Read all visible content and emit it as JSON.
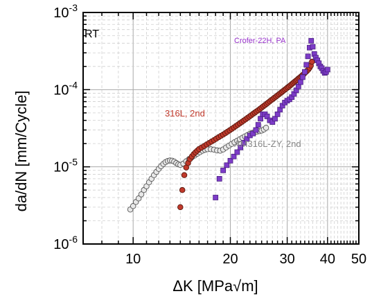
{
  "chart_data": {
    "type": "scatter",
    "title": "",
    "xlabel": "ΔK [MPa√m]",
    "ylabel": "da/dN [mm/Cycle]",
    "x_scale": "log",
    "y_scale": "log",
    "xlim": [
      7,
      50
    ],
    "ylim": [
      1e-06,
      0.001
    ],
    "x_ticks": [
      {
        "value": 10,
        "label": "10"
      },
      {
        "value": 20,
        "label": "20"
      },
      {
        "value": 30,
        "label": "30"
      },
      {
        "value": 40,
        "label": "40"
      },
      {
        "value": 50,
        "label": "50"
      }
    ],
    "y_ticks": [
      {
        "value": 1e-06,
        "mantissa": "10",
        "exp": "-6"
      },
      {
        "value": 1e-05,
        "mantissa": "10",
        "exp": "-5"
      },
      {
        "value": 0.0001,
        "mantissa": "10",
        "exp": "-4"
      },
      {
        "value": 0.001,
        "mantissa": "10",
        "exp": "-3"
      }
    ],
    "grid": true,
    "annotations": [
      {
        "text": "RT",
        "color": "#000000"
      },
      {
        "text": "Crofer-22H, PA",
        "color": "#9933cc"
      },
      {
        "text": "316L, 2nd",
        "color": "#c0392b"
      },
      {
        "text": "AM316L-ZY, 2nd",
        "color": "#888888"
      }
    ],
    "series": [
      {
        "name": "AM316L-ZY, 2nd",
        "marker": "circle",
        "fill": "#e8e8e8",
        "stroke": "#555555",
        "points": [
          [
            9.8,
            2.8e-06
          ],
          [
            10.0,
            3.1e-06
          ],
          [
            10.2,
            3.5e-06
          ],
          [
            10.4,
            3.9e-06
          ],
          [
            10.6,
            4.4e-06
          ],
          [
            10.8,
            5e-06
          ],
          [
            11.0,
            5.6e-06
          ],
          [
            11.2,
            6.3e-06
          ],
          [
            11.4,
            7e-06
          ],
          [
            11.6,
            7.8e-06
          ],
          [
            11.8,
            8.6e-06
          ],
          [
            12.0,
            9.4e-06
          ],
          [
            12.2,
            1.02e-05
          ],
          [
            12.4,
            1.09e-05
          ],
          [
            12.6,
            1.15e-05
          ],
          [
            12.8,
            1.19e-05
          ],
          [
            13.0,
            1.21e-05
          ],
          [
            13.2,
            1.2e-05
          ],
          [
            13.4,
            1.17e-05
          ],
          [
            13.6,
            1.12e-05
          ],
          [
            13.8,
            1.08e-05
          ],
          [
            14.0,
            1.06e-05
          ],
          [
            14.3,
            1.1e-05
          ],
          [
            14.6,
            1.18e-05
          ],
          [
            14.9,
            1.26e-05
          ],
          [
            15.2,
            1.33e-05
          ],
          [
            15.5,
            1.4e-05
          ],
          [
            15.8,
            1.48e-05
          ],
          [
            16.1,
            1.55e-05
          ],
          [
            16.4,
            1.62e-05
          ],
          [
            16.7,
            1.66e-05
          ],
          [
            17.0,
            1.69e-05
          ],
          [
            17.4,
            1.69e-05
          ],
          [
            17.8,
            1.67e-05
          ],
          [
            18.2,
            1.63e-05
          ],
          [
            18.6,
            1.62e-05
          ],
          [
            19.0,
            1.68e-05
          ],
          [
            19.4,
            1.78e-05
          ],
          [
            19.8,
            1.88e-05
          ],
          [
            20.2,
            1.98e-05
          ],
          [
            20.6,
            2.08e-05
          ],
          [
            21.0,
            2.18e-05
          ],
          [
            21.4,
            2.28e-05
          ],
          [
            21.8,
            2.38e-05
          ],
          [
            22.2,
            2.48e-05
          ],
          [
            22.6,
            2.58e-05
          ],
          [
            23.0,
            2.68e-05
          ],
          [
            23.4,
            2.76e-05
          ],
          [
            23.8,
            2.82e-05
          ],
          [
            24.2,
            2.86e-05
          ],
          [
            24.6,
            2.9e-05
          ],
          [
            25.0,
            2.95e-05
          ],
          [
            25.4,
            3.05e-05
          ],
          [
            25.8,
            3.2e-05
          ]
        ]
      },
      {
        "name": "316L, 2nd",
        "marker": "circle",
        "fill": "#c0392b",
        "stroke": "#5a1a10",
        "points": [
          [
            14.0,
            3e-06
          ],
          [
            14.2,
            5e-06
          ],
          [
            14.4,
            7.8e-06
          ],
          [
            14.6,
            9.8e-06
          ],
          [
            14.8,
            1.12e-05
          ],
          [
            15.0,
            1.26e-05
          ],
          [
            15.2,
            1.36e-05
          ],
          [
            15.4,
            1.46e-05
          ],
          [
            15.6,
            1.54e-05
          ],
          [
            15.8,
            1.62e-05
          ],
          [
            16.0,
            1.7e-05
          ],
          [
            16.3,
            1.78e-05
          ],
          [
            16.6,
            1.86e-05
          ],
          [
            16.9,
            1.95e-05
          ],
          [
            17.2,
            2.04e-05
          ],
          [
            17.5,
            2.13e-05
          ],
          [
            17.8,
            2.22e-05
          ],
          [
            18.1,
            2.32e-05
          ],
          [
            18.4,
            2.42e-05
          ],
          [
            18.7,
            2.52e-05
          ],
          [
            19.0,
            2.62e-05
          ],
          [
            19.3,
            2.73e-05
          ],
          [
            19.6,
            2.85e-05
          ],
          [
            19.9,
            2.97e-05
          ],
          [
            20.2,
            3.1e-05
          ],
          [
            20.5,
            3.23e-05
          ],
          [
            20.8,
            3.37e-05
          ],
          [
            21.1,
            3.51e-05
          ],
          [
            21.4,
            3.66e-05
          ],
          [
            21.7,
            3.81e-05
          ],
          [
            22.0,
            3.97e-05
          ],
          [
            22.3,
            4.13e-05
          ],
          [
            22.6,
            4.3e-05
          ],
          [
            22.9,
            4.47e-05
          ],
          [
            23.2,
            4.65e-05
          ],
          [
            23.5,
            4.84e-05
          ],
          [
            23.8,
            5.03e-05
          ],
          [
            24.1,
            5.22e-05
          ],
          [
            24.4,
            5.42e-05
          ],
          [
            24.7,
            5.63e-05
          ],
          [
            25.0,
            5.85e-05
          ],
          [
            25.3,
            6.08e-05
          ],
          [
            25.6,
            6.31e-05
          ],
          [
            25.9,
            6.55e-05
          ],
          [
            26.2,
            6.8e-05
          ],
          [
            26.5,
            7.06e-05
          ],
          [
            26.8,
            7.32e-05
          ],
          [
            27.1,
            7.58e-05
          ],
          [
            27.4,
            7.85e-05
          ],
          [
            27.7,
            8.13e-05
          ],
          [
            28.0,
            8.42e-05
          ],
          [
            28.3,
            8.72e-05
          ],
          [
            28.6,
            9.02e-05
          ],
          [
            28.9,
            9.33e-05
          ],
          [
            29.2,
            9.65e-05
          ],
          [
            29.5,
            9.98e-05
          ],
          [
            29.8,
            0.000103
          ],
          [
            30.1,
            0.000107
          ],
          [
            30.4,
            0.00011
          ],
          [
            30.7,
            0.000114
          ],
          [
            31.0,
            0.000118
          ],
          [
            31.3,
            0.000122
          ],
          [
            31.6,
            0.000126
          ],
          [
            31.9,
            0.00013
          ],
          [
            32.2,
            0.000134
          ],
          [
            32.5,
            0.000139
          ],
          [
            32.8,
            0.000143
          ],
          [
            33.1,
            0.000148
          ],
          [
            33.4,
            0.000153
          ],
          [
            33.7,
            0.000158
          ],
          [
            34.0,
            0.000164
          ],
          [
            34.3,
            0.00017
          ],
          [
            34.6,
            0.000176
          ],
          [
            34.9,
            0.000183
          ],
          [
            35.2,
            0.000192
          ],
          [
            35.5,
            0.000205
          ],
          [
            35.8,
            0.00023
          ]
        ]
      },
      {
        "name": "Crofer-22H, PA",
        "marker": "square",
        "fill": "#7d3cc8",
        "stroke": "#4a1f80",
        "points": [
          [
            18.0,
            4e-06
          ],
          [
            18.5,
            7e-06
          ],
          [
            19.0,
            9e-06
          ],
          [
            19.5,
            1.05e-05
          ],
          [
            20.0,
            1.2e-05
          ],
          [
            20.5,
            1.36e-05
          ],
          [
            21.0,
            1.55e-05
          ],
          [
            21.5,
            1.78e-05
          ],
          [
            22.0,
            2.05e-05
          ],
          [
            22.5,
            2.3e-05
          ],
          [
            23.0,
            2.55e-05
          ],
          [
            23.5,
            2.7e-05
          ],
          [
            24.0,
            3e-05
          ],
          [
            24.4,
            3.5e-05
          ],
          [
            24.8,
            4.2e-05
          ],
          [
            25.2,
            4.8e-05
          ],
          [
            25.6,
            4.8e-05
          ],
          [
            26.0,
            4.5e-05
          ],
          [
            26.5,
            4e-05
          ],
          [
            27.0,
            3.8e-05
          ],
          [
            27.5,
            4.2e-05
          ],
          [
            28.0,
            4.8e-05
          ],
          [
            28.5,
            5.5e-05
          ],
          [
            29.0,
            6.2e-05
          ],
          [
            29.5,
            6.8e-05
          ],
          [
            30.0,
            7.2e-05
          ],
          [
            30.5,
            7.5e-05
          ],
          [
            31.0,
            8e-05
          ],
          [
            31.5,
            8.8e-05
          ],
          [
            32.0,
            9.8e-05
          ],
          [
            32.5,
            0.00011
          ],
          [
            33.0,
            0.000125
          ],
          [
            33.5,
            0.000145
          ],
          [
            34.0,
            0.00017
          ],
          [
            34.4,
            0.00021
          ],
          [
            34.8,
            0.00027
          ],
          [
            35.2,
            0.00035
          ],
          [
            35.6,
            0.00043
          ],
          [
            36.0,
            0.00036
          ],
          [
            36.4,
            0.00029
          ],
          [
            36.8,
            0.00026
          ],
          [
            37.2,
            0.00024
          ],
          [
            37.6,
            0.00022
          ],
          [
            38.0,
            0.0002
          ],
          [
            38.4,
            0.00019
          ],
          [
            38.8,
            0.000175
          ],
          [
            39.2,
            0.000165
          ],
          [
            39.6,
            0.00017
          ],
          [
            40.0,
            0.000182
          ]
        ]
      }
    ]
  }
}
